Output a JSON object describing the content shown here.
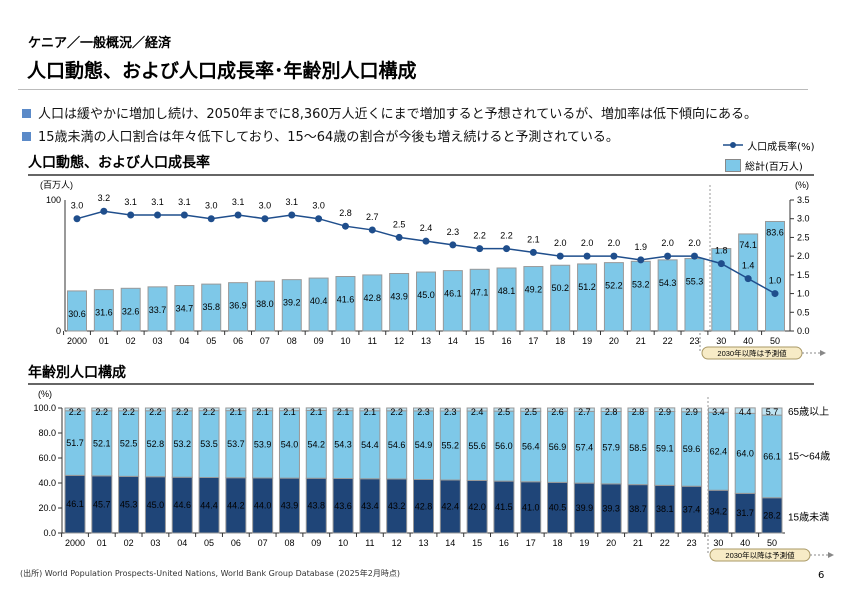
{
  "header": {
    "breadcrumb": "ケニア／一般概況／経済",
    "title": "人口動態、および人口成長率･年齢別人口構成"
  },
  "bullets": [
    "人口は緩やかに増加し続け、2050年までに8,360万人近くにまで増加すると予想されているが、増加率は低下傾向にある。",
    "15歳未満の人口割合は年々低下しており、15～64歳の割合が今後も増え続けると予測されている。"
  ],
  "colors": {
    "bar": "#7ec8e8",
    "line": "#1f4e8c",
    "under15": "#1f4578",
    "mid": "#7ec8e8",
    "over65": "#bfe3f2",
    "bullet": "#5b8ac8"
  },
  "chart_data": [
    {
      "type": "bar+line",
      "title": "人口動態、および人口成長率",
      "categories": [
        "2000",
        "01",
        "02",
        "03",
        "04",
        "05",
        "06",
        "07",
        "08",
        "09",
        "10",
        "11",
        "12",
        "13",
        "14",
        "15",
        "16",
        "17",
        "18",
        "19",
        "20",
        "21",
        "22",
        "23",
        "30",
        "40",
        "50"
      ],
      "ylabel_left": "(百万人)",
      "ylabel_right": "(%)",
      "ylim_left": [
        0,
        100
      ],
      "ylim_right": [
        0,
        3.5
      ],
      "yticks_left": [
        "0",
        "100"
      ],
      "yticks_right": [
        "0.0",
        "0.5",
        "1.0",
        "1.5",
        "2.0",
        "2.5",
        "3.0",
        "3.5"
      ],
      "legend": [
        "人口成長率(%)",
        "総計(百万人)"
      ],
      "legend_placement": "top-right",
      "series": [
        {
          "name": "総計(百万人)",
          "type": "bar",
          "values": [
            30.6,
            31.6,
            32.6,
            33.7,
            34.7,
            35.8,
            36.9,
            38.0,
            39.2,
            40.4,
            41.6,
            42.8,
            43.9,
            45.0,
            46.1,
            47.1,
            48.1,
            49.2,
            50.2,
            51.2,
            52.2,
            53.2,
            54.3,
            55.3,
            null,
            74.1,
            83.6
          ]
        },
        {
          "name": "人口成長率(%)",
          "type": "line",
          "axis": "right",
          "values": [
            3.0,
            3.2,
            3.1,
            3.1,
            3.1,
            3.0,
            3.1,
            3.0,
            3.1,
            3.0,
            2.8,
            2.7,
            2.5,
            2.4,
            2.3,
            2.2,
            2.2,
            2.1,
            2.0,
            2.0,
            2.0,
            1.9,
            2.0,
            2.0,
            1.8,
            1.4,
            1.0
          ]
        }
      ],
      "forecast_note": "2030年以降は予測値"
    },
    {
      "type": "stacked-bar",
      "title": "年齢別人口構成",
      "ylabel": "(%)",
      "ylim": [
        0,
        100
      ],
      "yticks": [
        "0.0",
        "20.0",
        "40.0",
        "60.0",
        "80.0",
        "100.0"
      ],
      "categories": [
        "2000",
        "01",
        "02",
        "03",
        "04",
        "05",
        "06",
        "07",
        "08",
        "09",
        "10",
        "11",
        "12",
        "13",
        "14",
        "15",
        "16",
        "17",
        "18",
        "19",
        "20",
        "21",
        "22",
        "23",
        "30",
        "40",
        "50"
      ],
      "series": [
        {
          "name": "15歳未満",
          "values": [
            46.1,
            45.7,
            45.3,
            45.0,
            44.6,
            44.4,
            44.2,
            44.0,
            43.9,
            43.8,
            43.6,
            43.4,
            43.2,
            42.8,
            42.4,
            42.0,
            41.5,
            41.0,
            40.5,
            39.9,
            39.3,
            38.7,
            38.1,
            37.4,
            34.2,
            31.7,
            28.2
          ]
        },
        {
          "name": "15～64歳",
          "values": [
            51.7,
            52.1,
            52.5,
            52.8,
            53.2,
            53.5,
            53.7,
            53.9,
            54.0,
            54.2,
            54.3,
            54.4,
            54.6,
            54.9,
            55.2,
            55.6,
            56.0,
            56.4,
            56.9,
            57.4,
            57.9,
            58.5,
            59.1,
            59.6,
            62.4,
            64.0,
            66.1
          ]
        },
        {
          "name": "65歳以上",
          "values": [
            2.2,
            2.2,
            2.2,
            2.2,
            2.2,
            2.2,
            2.1,
            2.1,
            2.1,
            2.1,
            2.1,
            2.1,
            2.2,
            2.3,
            2.3,
            2.4,
            2.5,
            2.5,
            2.6,
            2.7,
            2.8,
            2.8,
            2.9,
            2.9,
            3.4,
            4.4,
            5.7
          ]
        }
      ],
      "forecast_note": "2030年以降は予測値"
    }
  ],
  "footer": {
    "source": "(出所) World Population Prospects-United Nations, World Bank Group Database (2025年2月時点)",
    "page": "6"
  }
}
